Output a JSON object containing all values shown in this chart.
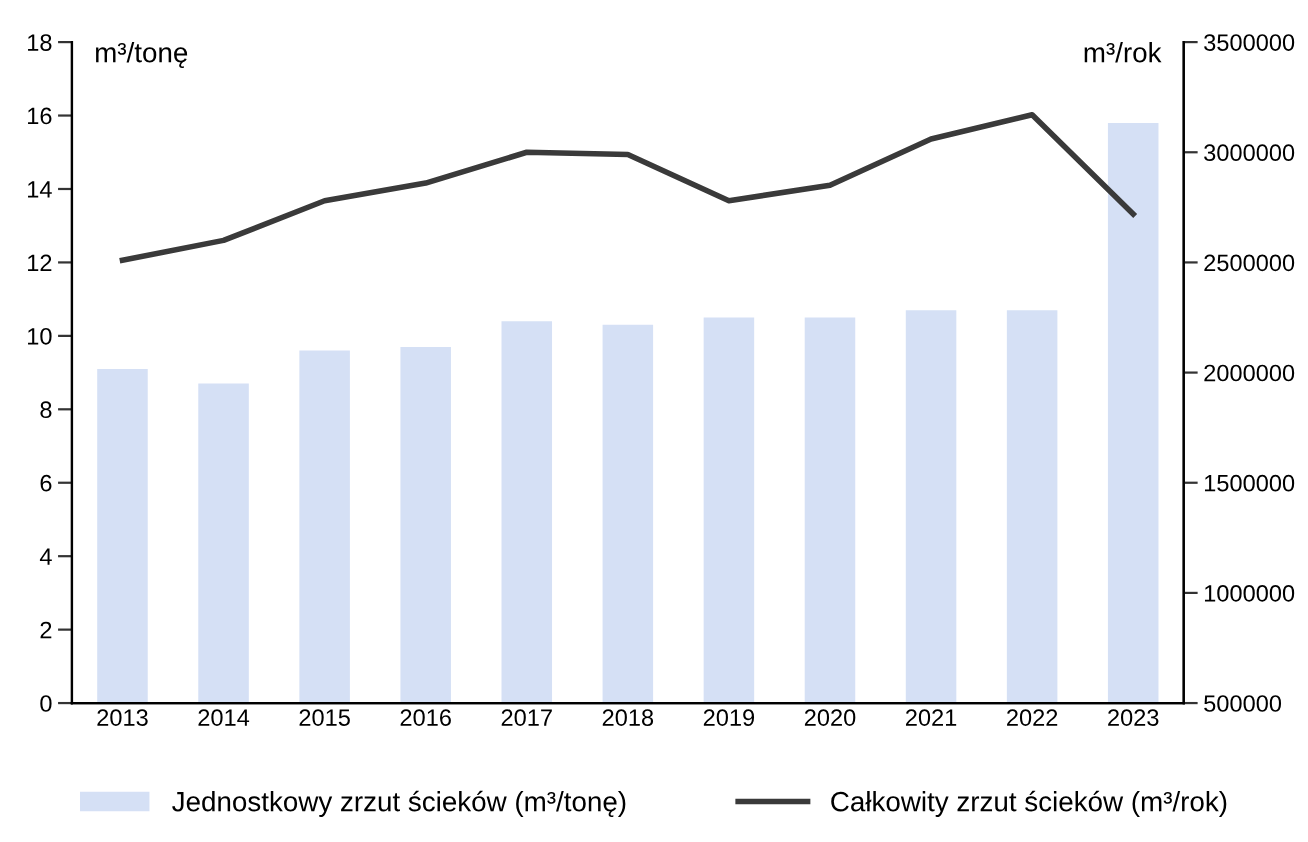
{
  "chart_data": {
    "type": "bar",
    "ylabel": "m³/tonę",
    "y2label": "m³/rok",
    "categories": [
      "2013",
      "2014",
      "2015",
      "2016",
      "2017",
      "2018",
      "2019",
      "2020",
      "2021",
      "2022",
      "2023"
    ],
    "series": [
      {
        "name": "Jednostkowy zrzut ścieków (m³/tonę)",
        "color": "#d5e0f5",
        "values": [
          9.1,
          8.7,
          9.6,
          9.7,
          10.4,
          10.3,
          10.5,
          10.5,
          10.7,
          10.7,
          15.8
        ]
      },
      {
        "name": "Całkowity zrzut ścieków (m³/rok)",
        "type": "line",
        "axis": "y2",
        "color": "#3a3a3a",
        "values": [
          2510000,
          2600000,
          2780000,
          2860000,
          3000000,
          2990000,
          2780000,
          2850000,
          3060000,
          3170000,
          2720000
        ]
      }
    ],
    "ylim": [
      0,
      18
    ],
    "yticks": [
      0,
      2,
      4,
      6,
      8,
      10,
      12,
      14,
      16,
      18
    ],
    "y2lim": [
      500000,
      3500000
    ],
    "y2ticks": [
      500000,
      1000000,
      1500000,
      2000000,
      2500000,
      3000000,
      3500000
    ],
    "grid": false,
    "legend": "bottom",
    "marker": "none",
    "line_style": "solid"
  }
}
